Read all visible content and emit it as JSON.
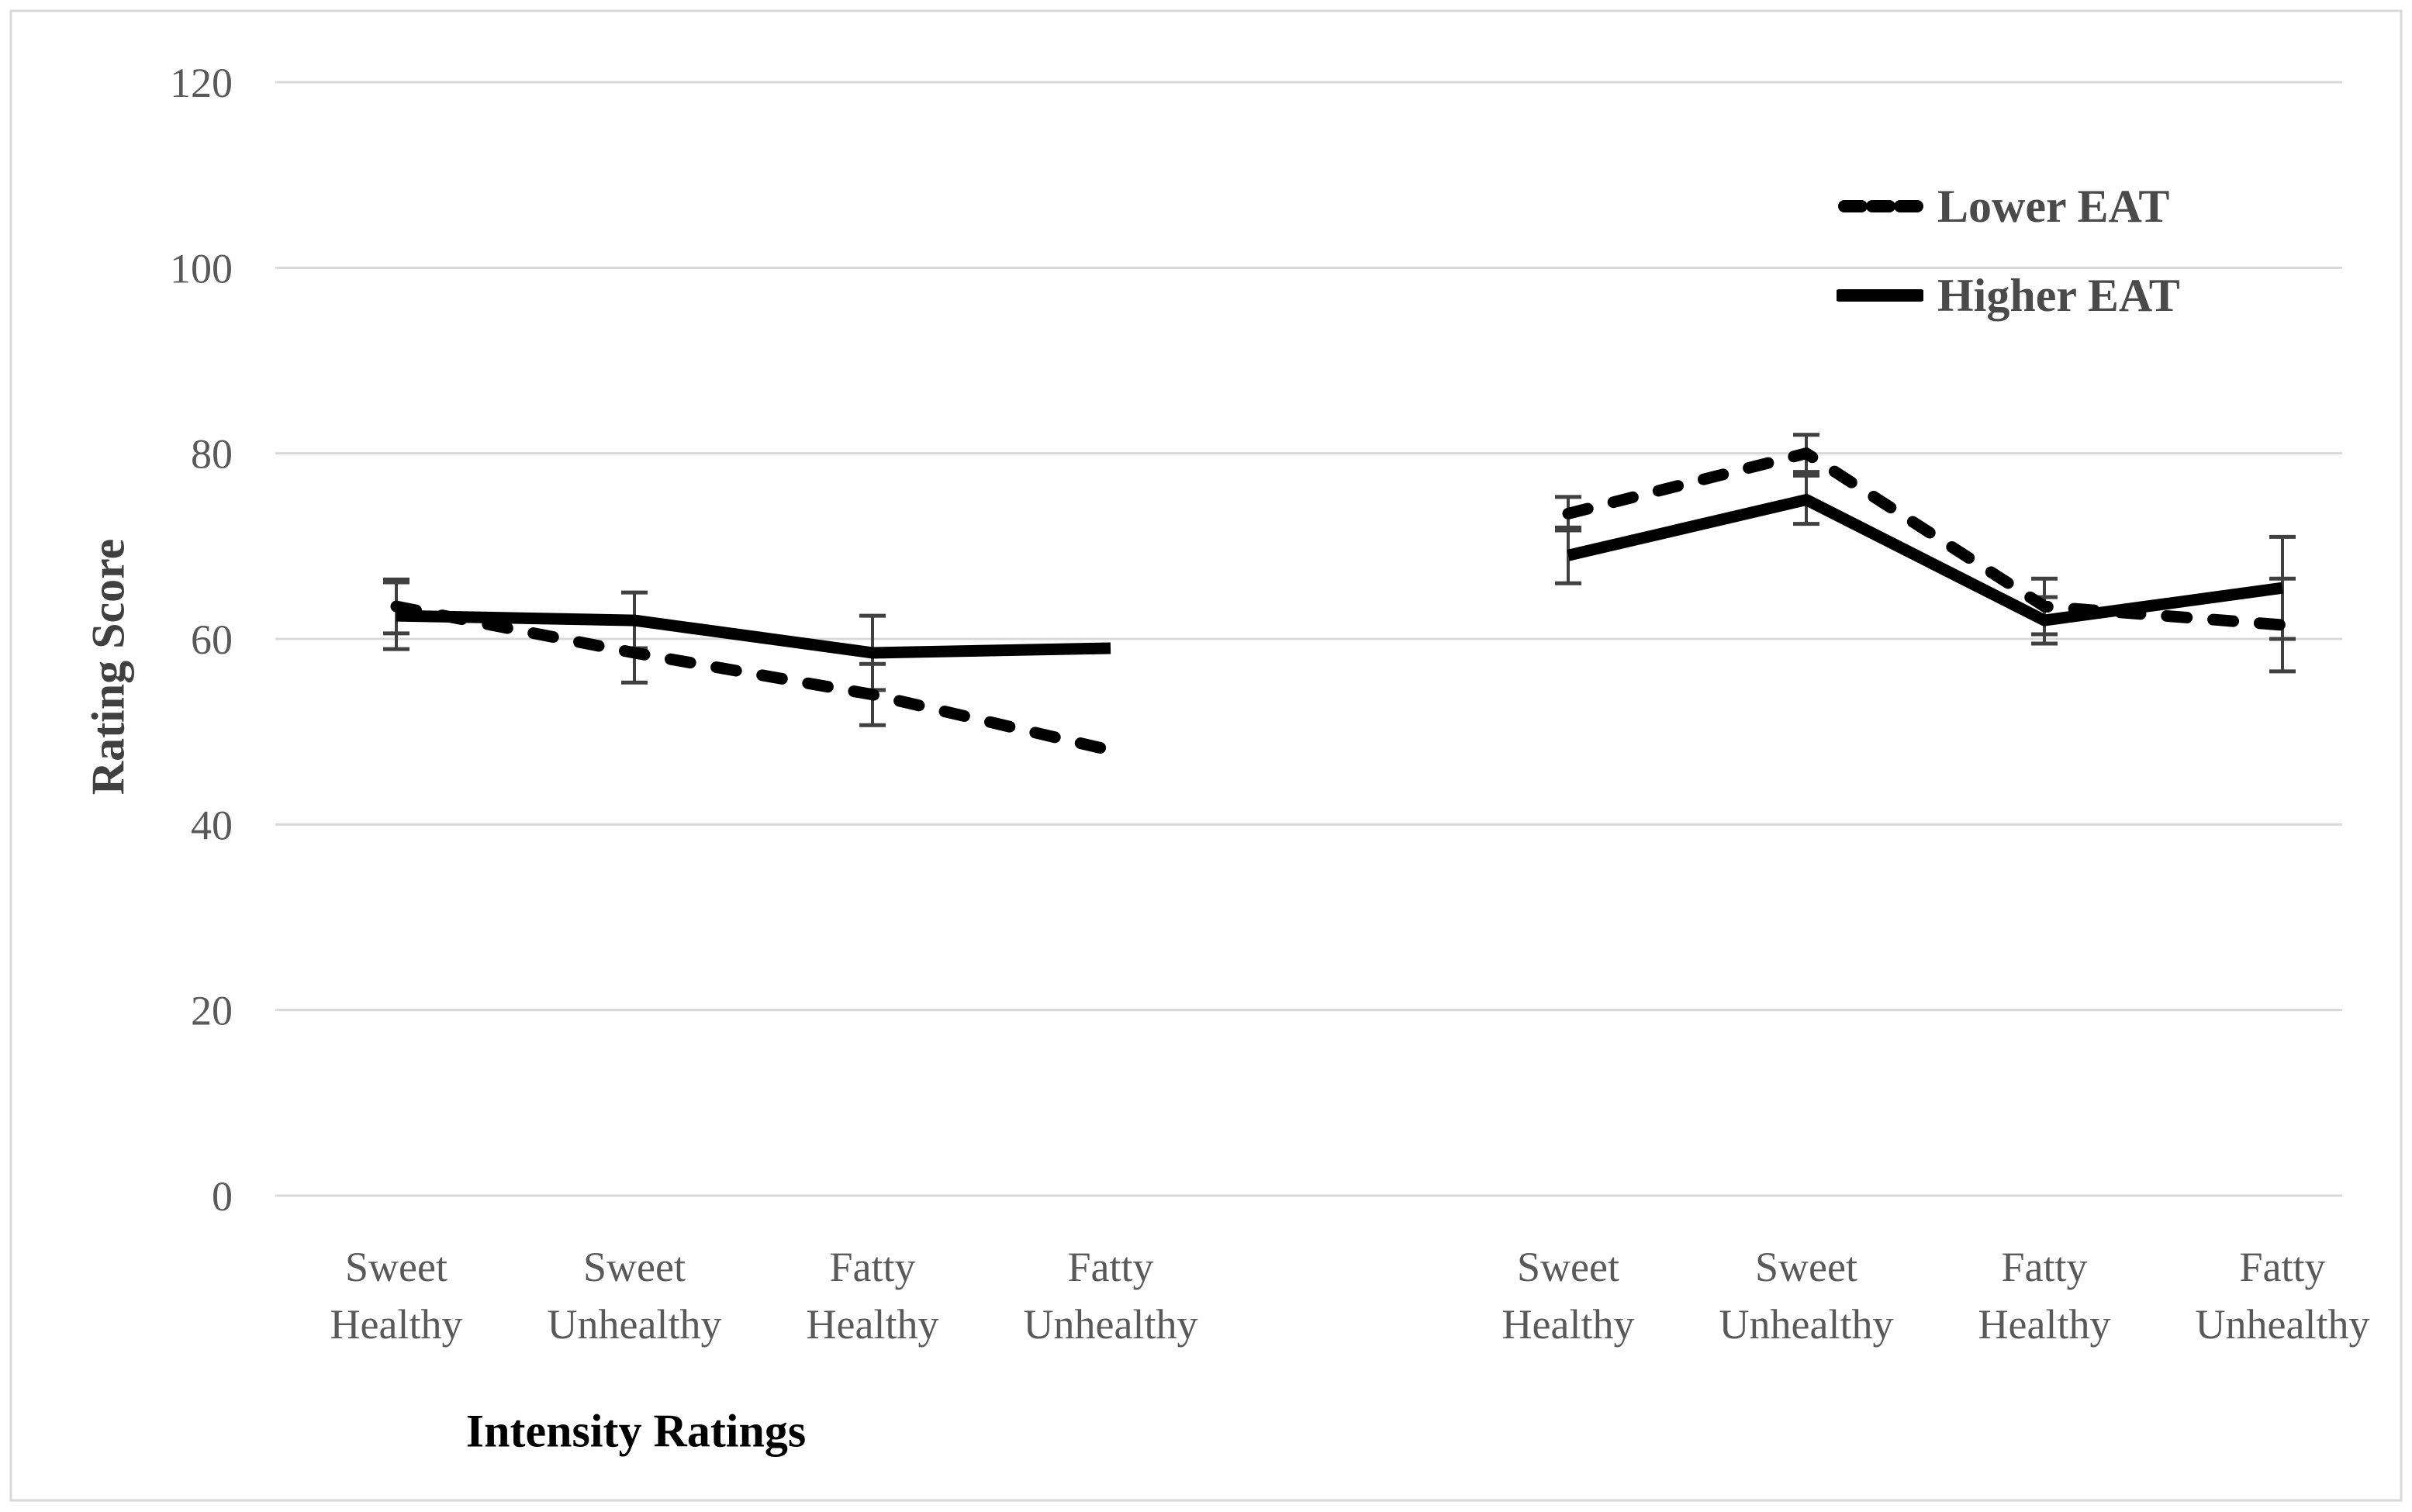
{
  "figure": {
    "background": "#ffffff",
    "border_color": "#d9d9d9"
  },
  "legend": {
    "items": [
      {
        "label": "Lower EAT",
        "style": "dashed"
      },
      {
        "label": "Higher EAT",
        "style": "solid"
      }
    ],
    "text_color": "#4a4a4a"
  },
  "chart_data": {
    "type": "line",
    "title": "",
    "ylabel": "Rating Score",
    "y_axis": {
      "min": 0,
      "max": 120,
      "step": 20,
      "ticks": [
        120,
        100,
        80,
        60,
        40,
        20,
        0
      ]
    },
    "grid": true,
    "legend_position": "top-right",
    "line_color": "#000000",
    "error_bar_color": "#404040",
    "gridline_color": "#d9d9d9",
    "axis_text_color": "#595959",
    "panels": [
      {
        "axis_title": "Intensity Ratings",
        "categories": [
          [
            "Sweet",
            "Healthy"
          ],
          [
            "Sweet",
            "Unhealthy"
          ],
          [
            "Fatty",
            "Healthy"
          ],
          [
            "Fatty",
            "Unhealthy"
          ]
        ],
        "series": [
          {
            "name": "Lower EAT",
            "style": "dashed",
            "values": [
              63.5,
              58.5,
              54,
              48
            ],
            "errors": [
              2.9,
              3.2,
              3.3,
              null
            ]
          },
          {
            "name": "Higher EAT",
            "style": "solid",
            "values": [
              62.5,
              62,
              58.5,
              59
            ],
            "errors": [
              3.6,
              3,
              4,
              null
            ]
          }
        ]
      },
      {
        "axis_title": "",
        "categories": [
          [
            "Sweet",
            "Healthy"
          ],
          [
            "Sweet",
            "Unhealthy"
          ],
          [
            "Fatty",
            "Healthy"
          ],
          [
            "Fatty",
            "Unhealthy"
          ]
        ],
        "series": [
          {
            "name": "Lower EAT",
            "style": "dashed",
            "values": [
              73.5,
              80,
              63.5,
              61.5
            ],
            "errors": [
              1.8,
              2,
              3,
              5
            ]
          },
          {
            "name": "Higher EAT",
            "style": "solid",
            "values": [
              69,
              75,
              62,
              65.5
            ],
            "errors": [
              3,
              2.6,
              2.5,
              5.5
            ]
          }
        ]
      }
    ]
  }
}
